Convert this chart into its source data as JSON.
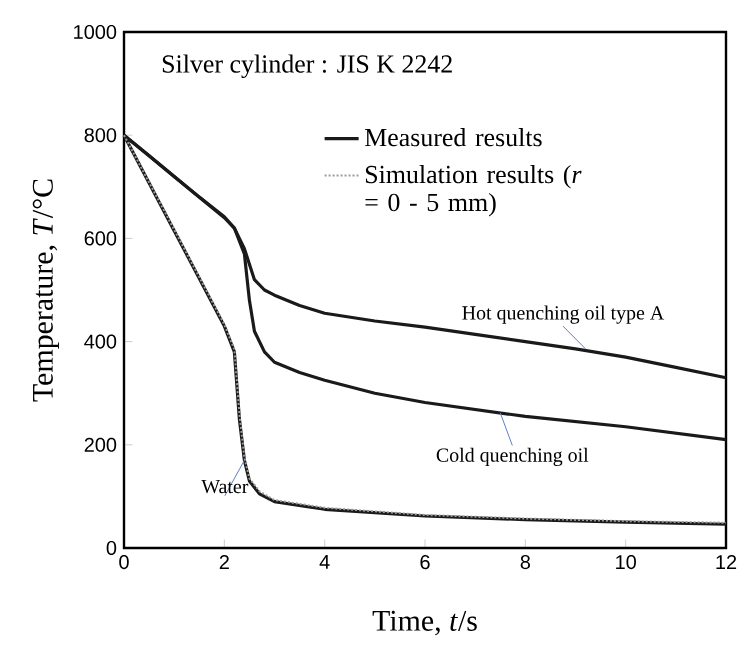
{
  "chart_data": {
    "type": "line",
    "xlabel": "Time, *t*/s",
    "ylabel": "Temperature, *T*/°C",
    "legend_title": "Silver cylinder : JIS K 2242",
    "legend": "top right",
    "xlim": [
      0,
      12
    ],
    "ylim": [
      0,
      1000
    ],
    "xticks": [
      0,
      2,
      4,
      6,
      8,
      10,
      12
    ],
    "yticks": [
      0,
      200,
      400,
      600,
      800,
      1000
    ],
    "series": [
      {
        "name": "Measured results",
        "color": "#1a1a1a",
        "line_style": "solid",
        "x": [
          0,
          0.5,
          1,
          1.5,
          2,
          2.2,
          2.4,
          2.6,
          2.8,
          3,
          3.5,
          4,
          5,
          6,
          7,
          8,
          9,
          10,
          11,
          12
        ],
        "values": [
          800,
          760,
          720,
          680,
          640,
          620,
          580,
          520,
          500,
          490,
          470,
          455,
          440,
          428,
          414,
          400,
          386,
          370,
          350,
          330
        ]
      },
      {
        "color": "#1a1a1a",
        "line_style": "solid",
        "x": [
          0,
          0.5,
          1,
          1.5,
          2,
          2.2,
          2.4,
          2.5,
          2.6,
          2.8,
          3,
          3.5,
          4,
          5,
          6,
          8,
          10,
          12
        ],
        "values": [
          800,
          760,
          720,
          680,
          642,
          620,
          570,
          480,
          420,
          380,
          360,
          340,
          325,
          300,
          282,
          255,
          235,
          210
        ]
      },
      {
        "color": "#1a1a1a",
        "line_style": "solid",
        "x": [
          0,
          1,
          2,
          2.2,
          2.3,
          2.4,
          2.5,
          2.7,
          3,
          4,
          6,
          8,
          10,
          12
        ],
        "values": [
          800,
          615,
          430,
          380,
          250,
          170,
          130,
          105,
          90,
          75,
          62,
          55,
          50,
          46
        ]
      },
      {
        "name": "Simulation results (*r* = 0 - 5 mm)",
        "color": "#9a9a9a",
        "line_style": "dotted",
        "x": [
          0,
          1,
          2,
          2.2,
          2.3,
          2.4,
          2.5,
          2.7,
          3,
          4,
          6,
          8,
          10,
          12
        ],
        "values": [
          800,
          617,
          433,
          385,
          260,
          175,
          135,
          110,
          93,
          78,
          64,
          57,
          52,
          49
        ]
      }
    ],
    "annotations": [
      {
        "text": "Hot quenching oil type A",
        "x": 9.2,
        "y": 386
      },
      {
        "text": "Cold quenching oil",
        "x": 7.5,
        "y": 262
      },
      {
        "text": "Water",
        "x": 2.4,
        "y": 170
      }
    ]
  }
}
